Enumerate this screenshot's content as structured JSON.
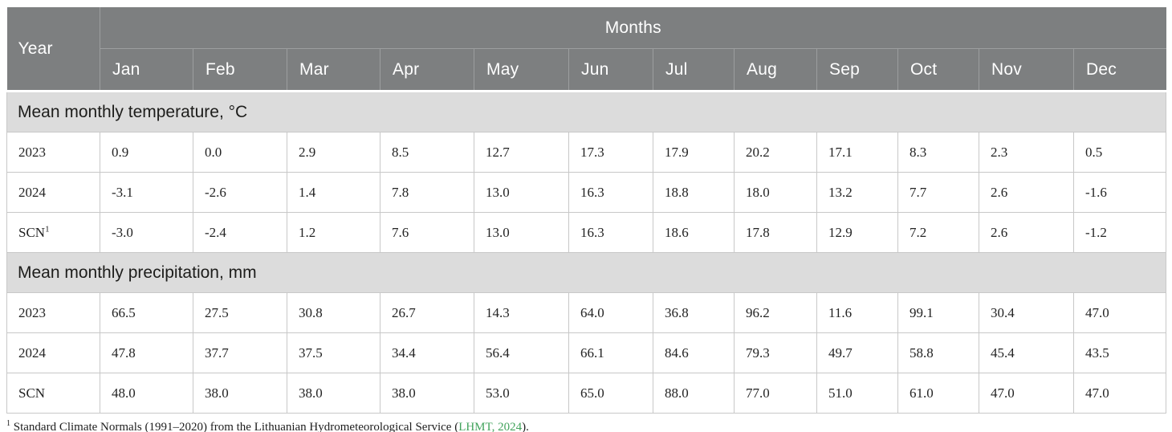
{
  "table": {
    "corner_header": "Year",
    "months_header": "Months",
    "month_columns": [
      "Jan",
      "Feb",
      "Mar",
      "Apr",
      "May",
      "Jun",
      "Jul",
      "Aug",
      "Sep",
      "Oct",
      "Nov",
      "Dec"
    ],
    "sections": [
      {
        "title": "Mean monthly temperature, °C",
        "rows": [
          {
            "label": "2023",
            "label_sup": "",
            "values": [
              "0.9",
              "0.0",
              "2.9",
              "8.5",
              "12.7",
              "17.3",
              "17.9",
              "20.2",
              "17.1",
              "8.3",
              "2.3",
              "0.5"
            ]
          },
          {
            "label": "2024",
            "label_sup": "",
            "values": [
              "-3.1",
              "-2.6",
              "1.4",
              "7.8",
              "13.0",
              "16.3",
              "18.8",
              "18.0",
              "13.2",
              "7.7",
              "2.6",
              "-1.6"
            ]
          },
          {
            "label": "SCN",
            "label_sup": "1",
            "values": [
              "-3.0",
              "-2.4",
              "1.2",
              "7.6",
              "13.0",
              "16.3",
              "18.6",
              "17.8",
              "12.9",
              "7.2",
              "2.6",
              "-1.2"
            ]
          }
        ]
      },
      {
        "title": "Mean monthly precipitation, mm",
        "rows": [
          {
            "label": "2023",
            "label_sup": "",
            "values": [
              "66.5",
              "27.5",
              "30.8",
              "26.7",
              "14.3",
              "64.0",
              "36.8",
              "96.2",
              "11.6",
              "99.1",
              "30.4",
              "47.0"
            ]
          },
          {
            "label": "2024",
            "label_sup": "",
            "values": [
              "47.8",
              "37.7",
              "37.5",
              "34.4",
              "56.4",
              "66.1",
              "84.6",
              "79.3",
              "49.7",
              "58.8",
              "45.4",
              "43.5"
            ]
          },
          {
            "label": "SCN",
            "label_sup": "",
            "values": [
              "48.0",
              "38.0",
              "38.0",
              "38.0",
              "53.0",
              "65.0",
              "88.0",
              "77.0",
              "51.0",
              "61.0",
              "47.0",
              "47.0"
            ]
          }
        ]
      }
    ]
  },
  "footnote": {
    "marker": "1",
    "text_before_link": " Standard Climate Normals (1991–2020) from the Lithuanian Hydrometeorological Service (",
    "link_text": "LHMT, 2024",
    "text_after_link": ")."
  },
  "colors": {
    "header_bg": "#7d7f80",
    "header_separator": "#9c9e9f",
    "header_text": "#ffffff",
    "section_bg": "#dcdcdc",
    "section_text": "#1d1d1b",
    "row_border": "#c8c8c8",
    "body_text": "#232323",
    "link_green": "#42a35c",
    "page_bg": "#ffffff"
  }
}
